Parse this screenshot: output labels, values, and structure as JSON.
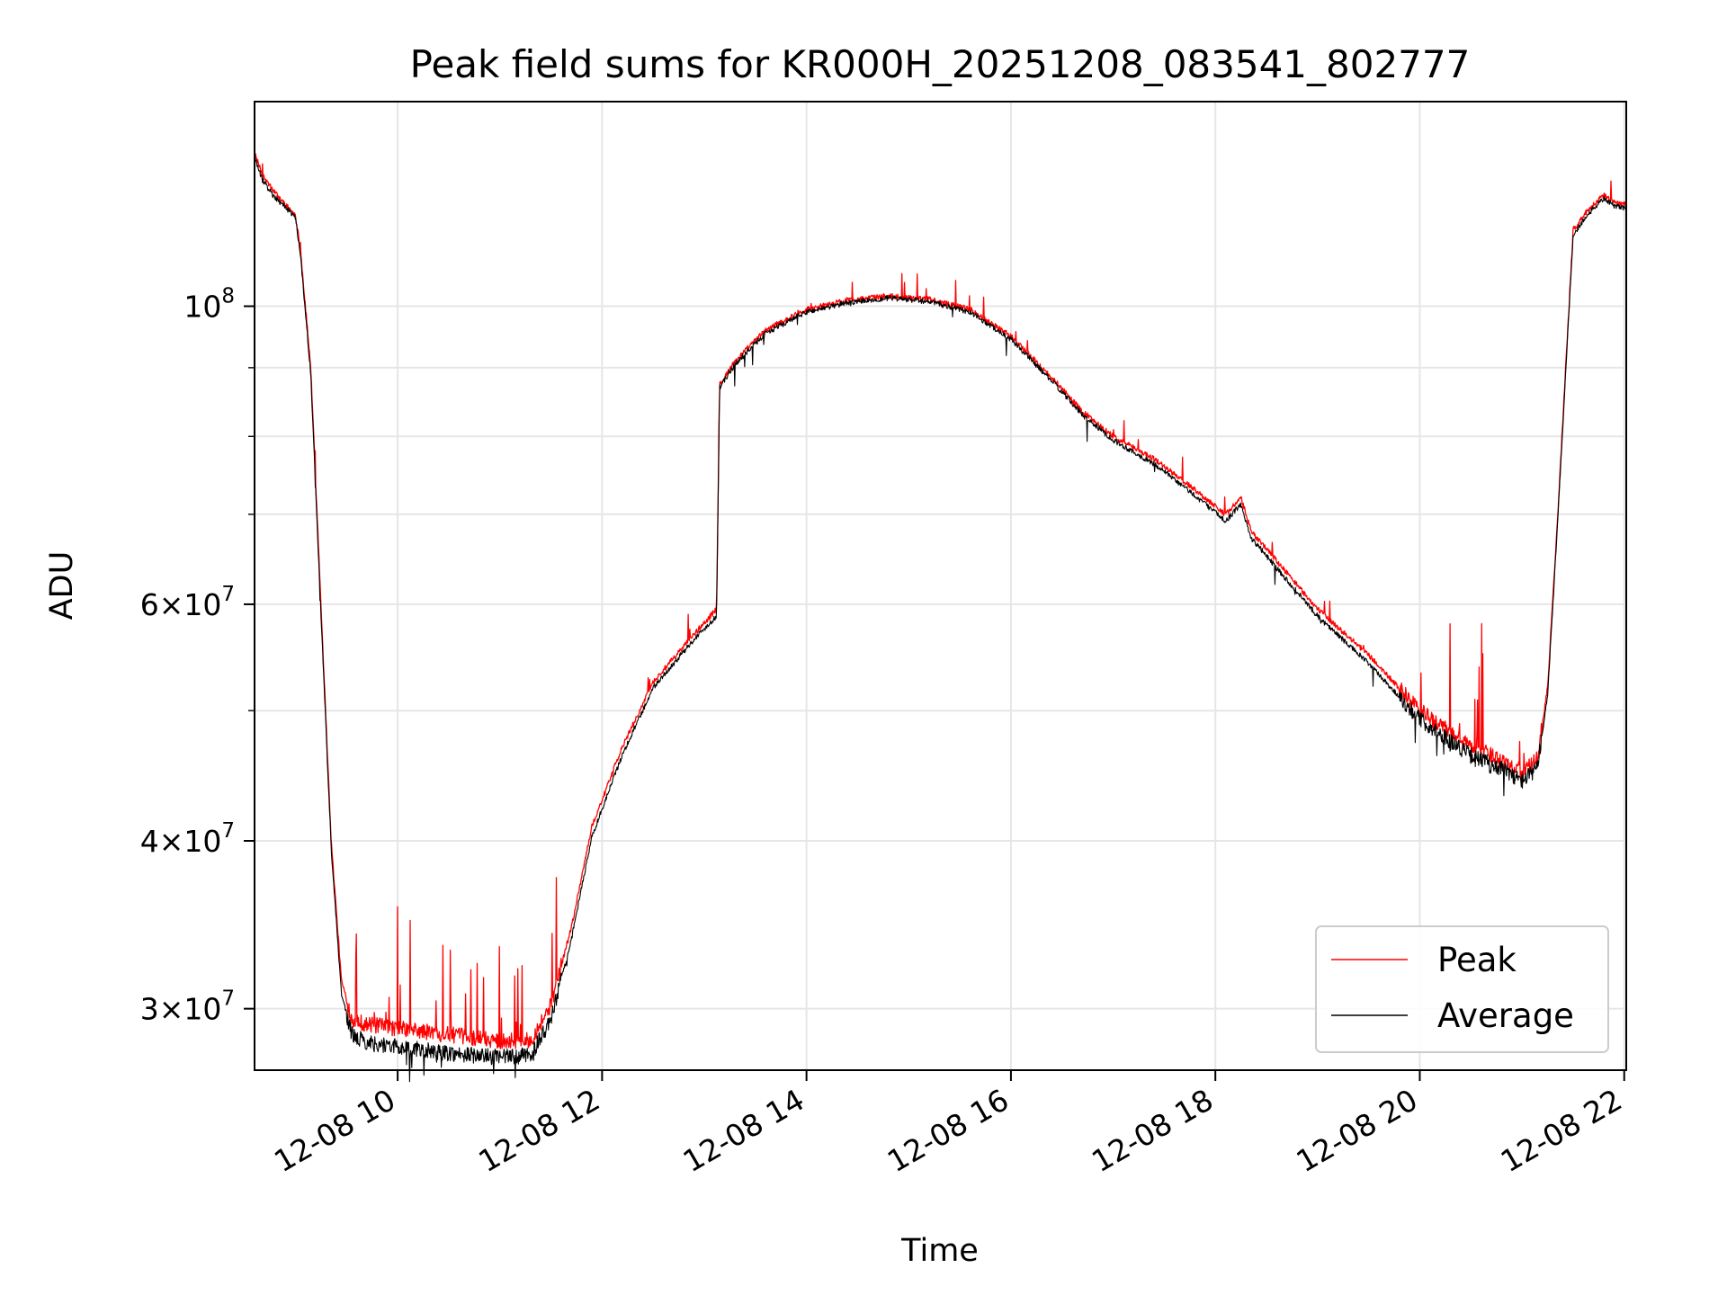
{
  "chart_data": {
    "type": "line",
    "title": "Peak field sums for KR000H_20251208_083541_802777",
    "xlabel": "Time",
    "ylabel": "ADU",
    "yscale": "log",
    "xlim_hours": [
      8.6,
      22.02
    ],
    "ylim": [
      27000000,
      142000000
    ],
    "grid": true,
    "legend_position": "lower-right",
    "x_ticks": [
      {
        "value": 10,
        "label": "12-08 10"
      },
      {
        "value": 12,
        "label": "12-08 12"
      },
      {
        "value": 14,
        "label": "12-08 14"
      },
      {
        "value": 16,
        "label": "12-08 16"
      },
      {
        "value": 18,
        "label": "12-08 18"
      },
      {
        "value": 20,
        "label": "12-08 20"
      },
      {
        "value": 22,
        "label": "12-08 22"
      }
    ],
    "y_major_ticks": [
      {
        "value": 30000000,
        "mantissa": "3",
        "base": "10",
        "exp": "7"
      },
      {
        "value": 40000000,
        "mantissa": "4",
        "base": "10",
        "exp": "7"
      },
      {
        "value": 60000000,
        "mantissa": "6",
        "base": "10",
        "exp": "7"
      },
      {
        "value": 100000000,
        "mantissa": "",
        "base": "10",
        "exp": "8"
      }
    ],
    "y_minor_gridlines": [
      50000000,
      70000000,
      80000000,
      90000000
    ],
    "series": [
      {
        "name": "Peak",
        "color": "#ff0000",
        "x": [
          8.6,
          8.68,
          8.78,
          8.9,
          9.0,
          9.05,
          9.15,
          9.25,
          9.35,
          9.45,
          9.55,
          9.7,
          10.0,
          10.5,
          11.0,
          11.3,
          11.5,
          11.7,
          11.9,
          12.2,
          12.5,
          12.9,
          13.12,
          13.15,
          13.3,
          13.6,
          14.0,
          14.4,
          14.8,
          15.2,
          15.6,
          16.0,
          16.4,
          16.7,
          17.0,
          17.4,
          17.8,
          18.1,
          18.25,
          18.35,
          18.5,
          19.0,
          19.5,
          20.0,
          20.5,
          20.8,
          21.0,
          21.15,
          21.25,
          21.35,
          21.5,
          21.65,
          21.8,
          21.9,
          22.02
        ],
        "y": [
          130000000,
          125000000,
          122000000,
          119000000,
          117000000,
          110000000,
          90000000,
          60000000,
          40000000,
          31500000,
          29500000,
          29200000,
          29000000,
          28700000,
          28400000,
          28400000,
          30200000,
          34500000,
          41000000,
          47000000,
          52500000,
          57000000,
          59500000,
          87500000,
          91000000,
          96000000,
          99500000,
          101000000,
          101800000,
          101200000,
          99500000,
          95000000,
          88500000,
          83500000,
          80000000,
          77000000,
          73000000,
          70000000,
          72000000,
          68000000,
          66000000,
          59500000,
          55000000,
          50000000,
          47000000,
          46000000,
          45000000,
          46000000,
          52000000,
          70000000,
          114000000,
          118000000,
          121000000,
          119500000,
          119000000
        ]
      },
      {
        "name": "Average",
        "color": "#000000",
        "x": [
          8.6,
          8.68,
          8.78,
          8.9,
          9.0,
          9.05,
          9.15,
          9.25,
          9.35,
          9.45,
          9.55,
          9.7,
          10.0,
          10.5,
          11.0,
          11.3,
          11.5,
          11.7,
          11.9,
          12.2,
          12.5,
          12.9,
          13.12,
          13.15,
          13.3,
          13.6,
          14.0,
          14.4,
          14.8,
          15.2,
          15.6,
          16.0,
          16.4,
          16.7,
          17.0,
          17.4,
          17.8,
          18.1,
          18.25,
          18.35,
          18.5,
          19.0,
          19.5,
          20.0,
          20.5,
          20.8,
          21.0,
          21.15,
          21.25,
          21.35,
          21.5,
          21.65,
          21.8,
          21.9,
          22.02
        ],
        "y": [
          129000000,
          124000000,
          121000000,
          118500000,
          116500000,
          109000000,
          89000000,
          59000000,
          39500000,
          30800000,
          28700000,
          28300000,
          28100000,
          27800000,
          27600000,
          27700000,
          29400000,
          33800000,
          40300000,
          46400000,
          52000000,
          56500000,
          58800000,
          87000000,
          90500000,
          95500000,
          99000000,
          100600000,
          101400000,
          100800000,
          99000000,
          94500000,
          88000000,
          83000000,
          79500000,
          76300000,
          72300000,
          69200000,
          71200000,
          67200000,
          65200000,
          58800000,
          54200000,
          49300000,
          46300000,
          45300000,
          44300000,
          45300000,
          51300000,
          69300000,
          113000000,
          117200000,
          120300000,
          118800000,
          118300000
        ]
      }
    ]
  }
}
